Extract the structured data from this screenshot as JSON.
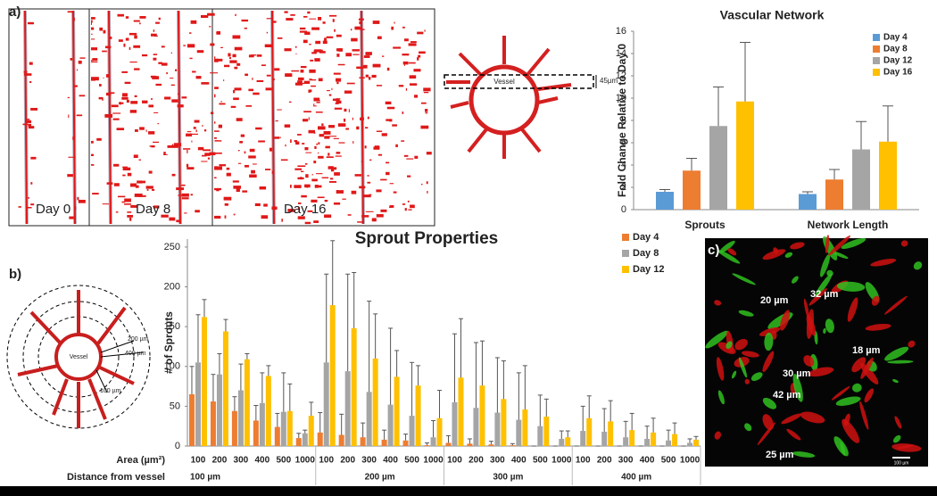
{
  "panel_labels": [
    "a)",
    "b)",
    "c)"
  ],
  "images": {
    "day_labels": [
      "Day 0",
      "Day 8",
      "Day 16"
    ]
  },
  "diagram_a": {
    "vessel": "Vessel",
    "thickness": "45µm"
  },
  "diagram_b": {
    "vessel": "Vessel",
    "radii": [
      "200 µm",
      "400 µm",
      "100 µm"
    ]
  },
  "micrograph": {
    "measurements": [
      "20 µm",
      "32 µm",
      "18 µm",
      "30 µm",
      "42 µm",
      "25 µm"
    ],
    "scale_bar": "100 µm"
  },
  "chart_data": [
    {
      "type": "bar",
      "title": "Vascular Network",
      "ylabel": "Fold Change Relative to Day 0",
      "categories": [
        "Sprouts",
        "Network Length"
      ],
      "series": [
        {
          "name": "Day 4",
          "color": "#5b9bd5",
          "values": [
            1.6,
            1.4
          ],
          "errors": [
            0.2,
            0.2
          ]
        },
        {
          "name": "Day 8",
          "color": "#ed7d31",
          "values": [
            3.5,
            2.7
          ],
          "errors": [
            1.1,
            0.9
          ]
        },
        {
          "name": "Day 12",
          "color": "#a5a5a5",
          "values": [
            7.5,
            5.4
          ],
          "errors": [
            3.5,
            2.5
          ]
        },
        {
          "name": "Day 16",
          "color": "#ffc000",
          "values": [
            9.7,
            6.1
          ],
          "errors": [
            5.3,
            3.2
          ]
        }
      ],
      "ylim": [
        0,
        16
      ],
      "yticks": [
        0,
        2,
        4,
        6,
        8,
        10,
        12,
        14,
        16
      ],
      "grid": false,
      "legend": "upper right"
    },
    {
      "type": "bar",
      "title": "Sprout Properties",
      "ylabel": "# of Sprouts",
      "xlabel": "Area (µm²)",
      "group_title": "Distance from vessel",
      "groups": [
        "100 µm",
        "200 µm",
        "300 µm",
        "400 µm"
      ],
      "categories": [
        "100",
        "200",
        "300",
        "400",
        "500",
        "1000",
        "100",
        "200",
        "300",
        "400",
        "500",
        "1000",
        "100",
        "200",
        "300",
        "400",
        "500",
        "1000",
        "100",
        "200",
        "300",
        "400",
        "500",
        "1000"
      ],
      "series": [
        {
          "name": "Day 4",
          "color": "#ed7d31",
          "values": [
            65,
            56,
            44,
            32,
            24,
            10,
            17,
            14,
            11,
            8,
            7,
            1,
            4,
            3,
            2,
            1,
            0,
            0,
            0,
            0,
            0,
            0,
            0,
            0
          ],
          "errors": [
            35,
            34,
            18,
            19,
            17,
            6,
            25,
            26,
            18,
            12,
            8,
            3,
            9,
            6,
            4,
            2,
            0,
            0,
            0,
            0,
            0,
            0,
            0,
            0
          ]
        },
        {
          "name": "Day 8",
          "color": "#a5a5a5",
          "values": [
            105,
            90,
            70,
            54,
            43,
            16,
            105,
            94,
            68,
            52,
            38,
            11,
            55,
            48,
            42,
            33,
            25,
            9,
            19,
            18,
            11,
            9,
            7,
            4
          ],
          "errors": [
            60,
            26,
            33,
            38,
            49,
            4,
            111,
            122,
            114,
            96,
            67,
            21,
            86,
            82,
            69,
            59,
            39,
            10,
            31,
            29,
            20,
            16,
            13,
            5
          ]
        },
        {
          "name": "Day 12",
          "color": "#ffc000",
          "values": [
            162,
            144,
            109,
            88,
            44,
            38,
            177,
            148,
            110,
            87,
            76,
            35,
            86,
            76,
            59,
            46,
            37,
            11,
            35,
            31,
            20,
            17,
            15,
            8
          ],
          "errors": [
            22,
            15,
            7,
            13,
            34,
            17,
            81,
            70,
            56,
            33,
            25,
            35,
            74,
            56,
            48,
            55,
            22,
            8,
            28,
            26,
            21,
            18,
            14,
            4
          ]
        }
      ],
      "ylim": [
        0,
        260
      ],
      "yticks": [
        0,
        50,
        100,
        150,
        200,
        250
      ],
      "grid": false,
      "legend": "upper right"
    }
  ]
}
